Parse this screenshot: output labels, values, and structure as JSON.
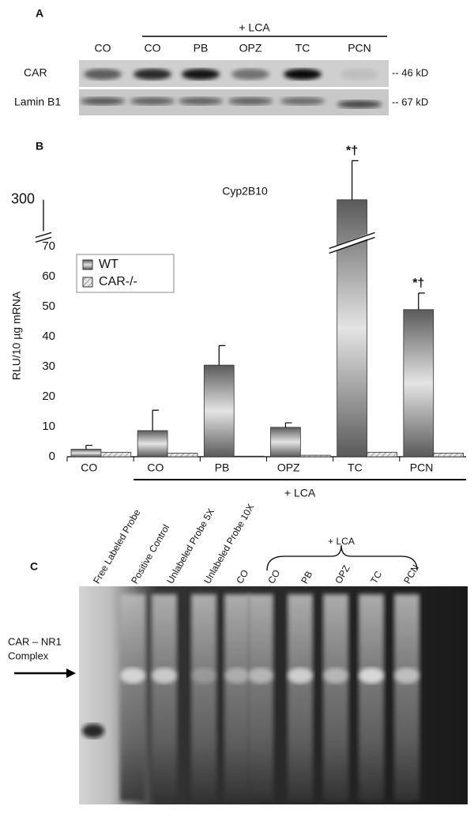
{
  "panel_a": {
    "label": "A",
    "group_label": "+ LCA",
    "lanes": [
      "CO",
      "CO",
      "PB",
      "OPZ",
      "TC",
      "PCN"
    ],
    "rows": [
      "CAR",
      "Lamin B1"
    ],
    "markers": [
      "-- 46 kD",
      "-- 67 kD"
    ]
  },
  "chart_data": {
    "type": "bar",
    "panel_label": "B",
    "title": "Cyp2B10",
    "y_label": "RLU/10 µg mRNA",
    "x_group_label": "+ LCA",
    "categories": [
      "CO",
      "CO",
      "PB",
      "OPZ",
      "TC",
      "PCN"
    ],
    "series": [
      {
        "name": "WT",
        "color": "#5a5a5a",
        "values": [
          2.5,
          8.7,
          30.5,
          9.8,
          300,
          49
        ],
        "errors": [
          1.3,
          6.8,
          6.5,
          1.5,
          13,
          5.5
        ],
        "annotations": [
          null,
          null,
          null,
          null,
          "*†",
          "*†"
        ]
      },
      {
        "name": "CAR-/-",
        "color": "#e6e6e6",
        "values": [
          1.5,
          1.2,
          0.2,
          0.5,
          1.5,
          1.2
        ]
      }
    ],
    "ylim": [
      0,
      315
    ],
    "axis_break": [
      72,
      288
    ],
    "yticks": [
      0,
      10,
      20,
      30,
      40,
      50,
      60,
      70,
      300
    ],
    "legend": "upper left"
  },
  "panel_c": {
    "label": "C",
    "lanes": [
      "Free Labeled Probe",
      "Positive Control",
      "Unlabeled Probe 5X",
      "Unlabeled Probe 10X",
      "CO",
      "CO",
      "PB",
      "OPZ",
      "TC",
      "PCN"
    ],
    "group_label": "+ LCA",
    "arrow_label": [
      "CAR – NR1",
      "Complex"
    ]
  }
}
